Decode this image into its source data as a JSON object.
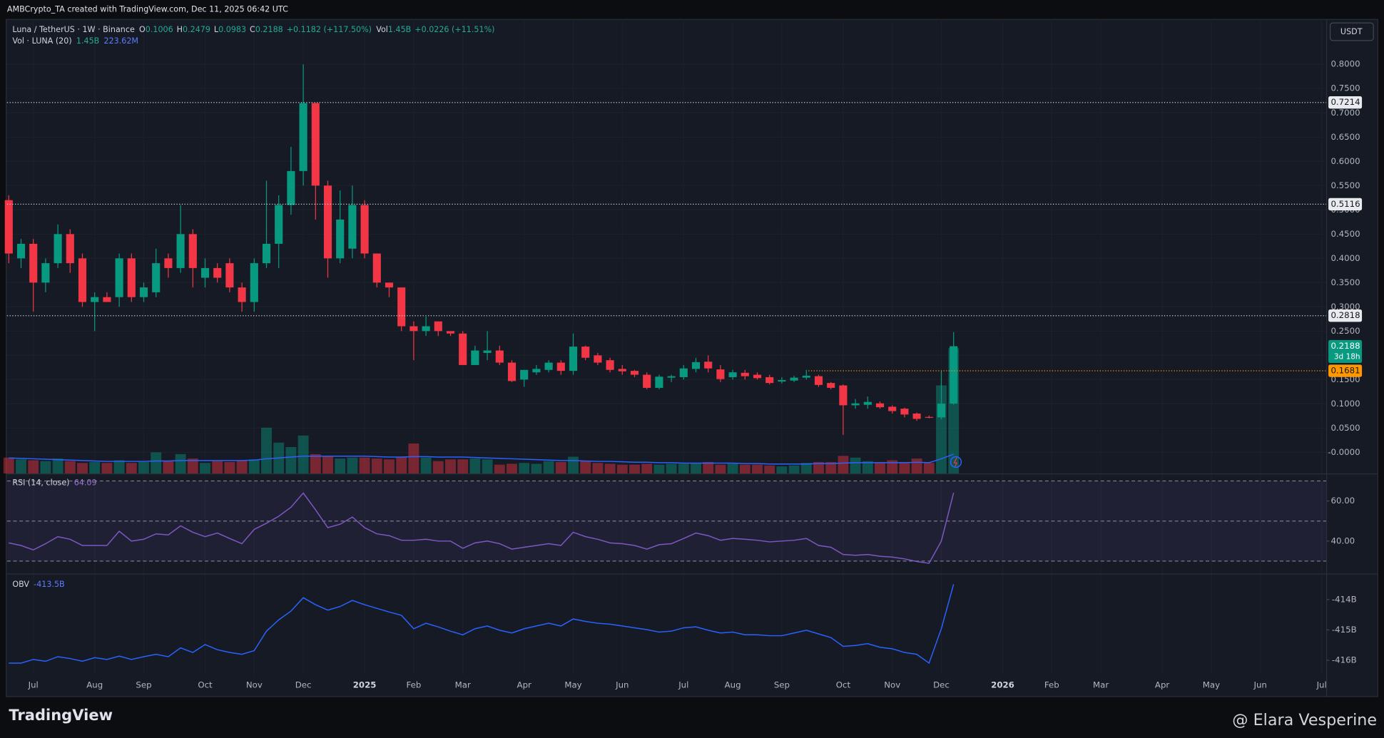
{
  "header": {
    "credit": "AMBCrypto_TA created with TradingView.com, Dec 11, 2025 06:42 UTC",
    "symbol": "Luna / TetherUS · 1W · Binance",
    "ohlc_labels": [
      "O",
      "H",
      "L",
      "C"
    ],
    "change": "+0.1182 (+117.50%)",
    "vol_label": "Vol",
    "vol_change": "+0.0226 (+11.51%)",
    "currency": "USDT"
  },
  "footer": {
    "brand": "TradingView",
    "watermark": "@ Elara Vesperine"
  },
  "chart_data": [
    {
      "type": "candlestick",
      "x": [
        0,
        1,
        2,
        3,
        4,
        5,
        6,
        7,
        8,
        9,
        10,
        11,
        12,
        13,
        14,
        15,
        16,
        17,
        18,
        19,
        20,
        21,
        22,
        23,
        24,
        25,
        26,
        27,
        28,
        29,
        30,
        31,
        32,
        33,
        34,
        35,
        36,
        37,
        38,
        39,
        40,
        41,
        42,
        43,
        44,
        45,
        46,
        47,
        48,
        49,
        50,
        51,
        52,
        53,
        54,
        55,
        56,
        57,
        58,
        59,
        60,
        61,
        62,
        63,
        64,
        65,
        66,
        67,
        68,
        69,
        70,
        71,
        72,
        73,
        74,
        75,
        76,
        77
      ],
      "open": [
        0.52,
        0.4,
        0.43,
        0.35,
        0.39,
        0.45,
        0.4,
        0.31,
        0.32,
        0.32,
        0.4,
        0.32,
        0.33,
        0.4,
        0.38,
        0.45,
        0.36,
        0.38,
        0.39,
        0.34,
        0.31,
        0.39,
        0.43,
        0.51,
        0.58,
        0.72,
        0.55,
        0.4,
        0.42,
        0.51,
        0.41,
        0.35,
        0.34,
        0.26,
        0.25,
        0.27,
        0.25,
        0.245,
        0.18,
        0.205,
        0.21,
        0.185,
        0.15,
        0.165,
        0.17,
        0.185,
        0.168,
        0.218,
        0.2,
        0.19,
        0.172,
        0.168,
        0.16,
        0.133,
        0.154,
        0.155,
        0.172,
        0.187,
        0.171,
        0.155,
        0.164,
        0.16,
        0.155,
        0.146,
        0.148,
        0.154,
        0.157,
        0.143,
        0.138,
        0.097,
        0.098,
        0.101,
        0.094,
        0.09,
        0.08,
        0.073,
        0.072,
        0.1006
      ],
      "high": [
        0.53,
        0.44,
        0.44,
        0.4,
        0.47,
        0.46,
        0.41,
        0.33,
        0.33,
        0.41,
        0.41,
        0.35,
        0.42,
        0.41,
        0.51,
        0.46,
        0.4,
        0.39,
        0.4,
        0.35,
        0.4,
        0.56,
        0.53,
        0.63,
        0.8,
        0.72,
        0.56,
        0.54,
        0.55,
        0.52,
        0.41,
        0.35,
        0.34,
        0.27,
        0.28,
        0.27,
        0.25,
        0.25,
        0.22,
        0.25,
        0.22,
        0.19,
        0.17,
        0.18,
        0.19,
        0.19,
        0.245,
        0.22,
        0.205,
        0.195,
        0.18,
        0.17,
        0.165,
        0.16,
        0.16,
        0.18,
        0.195,
        0.2,
        0.18,
        0.17,
        0.17,
        0.165,
        0.16,
        0.155,
        0.158,
        0.17,
        0.16,
        0.145,
        0.14,
        0.11,
        0.115,
        0.105,
        0.097,
        0.092,
        0.082,
        0.076,
        0.168,
        0.2479
      ],
      "low": [
        0.39,
        0.38,
        0.29,
        0.33,
        0.38,
        0.37,
        0.3,
        0.25,
        0.31,
        0.3,
        0.31,
        0.31,
        0.32,
        0.36,
        0.37,
        0.34,
        0.34,
        0.35,
        0.33,
        0.29,
        0.29,
        0.38,
        0.38,
        0.49,
        0.55,
        0.48,
        0.36,
        0.39,
        0.4,
        0.4,
        0.34,
        0.32,
        0.25,
        0.19,
        0.24,
        0.24,
        0.24,
        0.18,
        0.18,
        0.19,
        0.18,
        0.145,
        0.135,
        0.16,
        0.165,
        0.16,
        0.16,
        0.19,
        0.18,
        0.165,
        0.16,
        0.155,
        0.13,
        0.13,
        0.145,
        0.15,
        0.165,
        0.165,
        0.145,
        0.15,
        0.15,
        0.15,
        0.14,
        0.142,
        0.145,
        0.15,
        0.135,
        0.13,
        0.036,
        0.09,
        0.09,
        0.09,
        0.08,
        0.072,
        0.065,
        0.07,
        0.068,
        0.0983
      ],
      "close": [
        0.41,
        0.43,
        0.35,
        0.39,
        0.45,
        0.39,
        0.31,
        0.32,
        0.31,
        0.4,
        0.32,
        0.34,
        0.39,
        0.38,
        0.45,
        0.38,
        0.38,
        0.36,
        0.34,
        0.31,
        0.39,
        0.43,
        0.51,
        0.58,
        0.72,
        0.55,
        0.4,
        0.48,
        0.51,
        0.41,
        0.35,
        0.34,
        0.26,
        0.25,
        0.26,
        0.25,
        0.245,
        0.18,
        0.21,
        0.21,
        0.185,
        0.147,
        0.17,
        0.172,
        0.185,
        0.168,
        0.218,
        0.195,
        0.185,
        0.17,
        0.167,
        0.16,
        0.133,
        0.156,
        0.157,
        0.173,
        0.186,
        0.173,
        0.151,
        0.165,
        0.157,
        0.153,
        0.143,
        0.149,
        0.154,
        0.158,
        0.139,
        0.133,
        0.097,
        0.101,
        0.104,
        0.093,
        0.085,
        0.078,
        0.069,
        0.072,
        0.1006,
        0.2188
      ],
      "up_color": "#089981",
      "down_color": "#f23645",
      "xlim": [
        -0.14,
        107.4
      ],
      "xticks": [
        {
          "value": 2,
          "label": "Jul"
        },
        {
          "value": 7,
          "label": "Aug"
        },
        {
          "value": 11,
          "label": "Sep"
        },
        {
          "value": 16,
          "label": "Oct"
        },
        {
          "value": 20,
          "label": "Nov"
        },
        {
          "value": 24,
          "label": "Dec"
        },
        {
          "value": 29,
          "label": "2025"
        },
        {
          "value": 33,
          "label": "Feb"
        },
        {
          "value": 37,
          "label": "Mar"
        },
        {
          "value": 42,
          "label": "Apr"
        },
        {
          "value": 46,
          "label": "May"
        },
        {
          "value": 50,
          "label": "Jun"
        },
        {
          "value": 55,
          "label": "Jul"
        },
        {
          "value": 59,
          "label": "Aug"
        },
        {
          "value": 63,
          "label": "Sep"
        },
        {
          "value": 68,
          "label": "Oct"
        },
        {
          "value": 72,
          "label": "Nov"
        },
        {
          "value": 76,
          "label": "Dec"
        },
        {
          "value": 81,
          "label": "2026"
        },
        {
          "value": 85,
          "label": "Feb"
        },
        {
          "value": 89,
          "label": "Mar"
        },
        {
          "value": 94,
          "label": "Apr"
        },
        {
          "value": 98,
          "label": "May"
        },
        {
          "value": 102,
          "label": "Jun"
        },
        {
          "value": 107,
          "label": "Jul"
        }
      ],
      "ylim": [
        -0.0436,
        0.8927
      ],
      "yticks": [
        {
          "value": 0,
          "label": "-0.0000"
        },
        {
          "value": 0.05,
          "label": "0.0500"
        },
        {
          "value": 0.1,
          "label": "0.1000"
        },
        {
          "value": 0.15,
          "label": "0.1500"
        },
        {
          "value": 0.2,
          "label": "0.2000"
        },
        {
          "value": 0.25,
          "label": "0.2500"
        },
        {
          "value": 0.3,
          "label": "0.3000"
        },
        {
          "value": 0.35,
          "label": "0.3500"
        },
        {
          "value": 0.4,
          "label": "0.4000"
        },
        {
          "value": 0.45,
          "label": "0.4500"
        },
        {
          "value": 0.5,
          "label": "0.5000"
        },
        {
          "value": 0.55,
          "label": "0.5500"
        },
        {
          "value": 0.6,
          "label": "0.6000"
        },
        {
          "value": 0.65,
          "label": "0.6500"
        },
        {
          "value": 0.7,
          "label": "0.7000"
        },
        {
          "value": 0.75,
          "label": "0.7500"
        },
        {
          "value": 0.8,
          "label": "0.8000"
        }
      ],
      "levels": [
        0.7214,
        0.5116,
        0.2818
      ],
      "alert_level": 0.1681,
      "alert_color": "#ff9800",
      "countdown": "3d 18h",
      "volume": {
        "name": "Vol · LUNA (20)",
        "last_label": "1.45B",
        "values": [
          0.184,
          0.163,
          0.153,
          0.143,
          0.173,
          0.143,
          0.122,
          0.133,
          0.122,
          0.153,
          0.122,
          0.133,
          0.245,
          0.143,
          0.224,
          0.173,
          0.122,
          0.143,
          0.133,
          0.153,
          0.163,
          0.53,
          0.357,
          0.306,
          0.439,
          0.224,
          0.194,
          0.173,
          0.184,
          0.184,
          0.173,
          0.163,
          0.194,
          0.347,
          0.184,
          0.143,
          0.163,
          0.163,
          0.173,
          0.163,
          0.102,
          0.112,
          0.122,
          0.112,
          0.143,
          0.133,
          0.194,
          0.143,
          0.122,
          0.112,
          0.102,
          0.102,
          0.112,
          0.102,
          0.112,
          0.112,
          0.122,
          0.133,
          0.102,
          0.112,
          0.102,
          0.102,
          0.092,
          0.082,
          0.092,
          0.122,
          0.133,
          0.133,
          0.204,
          0.184,
          0.143,
          0.133,
          0.153,
          0.133,
          0.173,
          0.122,
          1.02,
          1.45
        ],
        "ma": {
          "color": "#2962ff",
          "last_label": "223.62M",
          "values": [
            0.18,
            0.175,
            0.17,
            0.165,
            0.16,
            0.155,
            0.15,
            0.145,
            0.14,
            0.14,
            0.14,
            0.14,
            0.145,
            0.145,
            0.15,
            0.15,
            0.15,
            0.15,
            0.15,
            0.15,
            0.155,
            0.17,
            0.18,
            0.19,
            0.2,
            0.2,
            0.2,
            0.2,
            0.2,
            0.2,
            0.195,
            0.19,
            0.19,
            0.195,
            0.195,
            0.19,
            0.19,
            0.19,
            0.185,
            0.18,
            0.175,
            0.17,
            0.165,
            0.16,
            0.155,
            0.15,
            0.15,
            0.145,
            0.14,
            0.14,
            0.135,
            0.13,
            0.13,
            0.125,
            0.125,
            0.12,
            0.12,
            0.12,
            0.12,
            0.12,
            0.115,
            0.115,
            0.11,
            0.11,
            0.11,
            0.11,
            0.115,
            0.115,
            0.12,
            0.125,
            0.125,
            0.125,
            0.125,
            0.125,
            0.13,
            0.125,
            0.17,
            0.22362
          ]
        }
      }
    },
    {
      "type": "line",
      "ylim": [
        24,
        73.3
      ],
      "yticks": [
        {
          "value": 40,
          "label": "40.00"
        },
        {
          "value": 60,
          "label": "60.00"
        }
      ],
      "bands": [
        70,
        50,
        30
      ],
      "series": [
        {
          "name": "RSI (14, close)",
          "color": "#7e57c2",
          "values": [
            39.1,
            37.8,
            35.6,
            38.7,
            42.2,
            40.9,
            37.8,
            37.8,
            37.8,
            44.9,
            40,
            40.9,
            43.6,
            43.1,
            47.6,
            44.4,
            42.2,
            44,
            41.3,
            38.7,
            45.8,
            48.9,
            52.4,
            56.9,
            64,
            55.6,
            46.7,
            48.4,
            52,
            46.7,
            43.6,
            42.7,
            40.4,
            40.4,
            40.9,
            40,
            40,
            36.4,
            39.1,
            40,
            38.7,
            36,
            36.9,
            37.8,
            38.7,
            37.8,
            44.4,
            42.2,
            40.9,
            39.1,
            38.7,
            37.8,
            36,
            38.2,
            38.7,
            41.3,
            44,
            42.7,
            40.4,
            41.3,
            40.9,
            40.4,
            39.6,
            40,
            40.4,
            41.3,
            37.8,
            36.9,
            33.3,
            32.9,
            33.3,
            32.4,
            32,
            31.1,
            29.8,
            28.9,
            40,
            64.09
          ]
        }
      ]
    },
    {
      "type": "line",
      "ylim": [
        -417.19,
        -413.19
      ],
      "yticks": [
        {
          "value": -414,
          "label": "-414B"
        },
        {
          "value": -415,
          "label": "-415B"
        },
        {
          "value": -416,
          "label": "-416B"
        }
      ],
      "series": [
        {
          "name": "OBV",
          "color": "#2962ff",
          "last_label": "-413.5B",
          "values": [
            -416.09,
            -416.09,
            -415.97,
            -416.03,
            -415.88,
            -415.94,
            -416.03,
            -415.91,
            -415.97,
            -415.86,
            -415.97,
            -415.88,
            -415.8,
            -415.88,
            -415.59,
            -415.74,
            -415.48,
            -415.65,
            -415.74,
            -415.8,
            -415.68,
            -415.04,
            -414.67,
            -414.38,
            -413.94,
            -414.17,
            -414.35,
            -414.23,
            -414.03,
            -414.17,
            -414.29,
            -414.41,
            -414.52,
            -414.96,
            -414.78,
            -414.9,
            -415.04,
            -415.16,
            -414.96,
            -414.87,
            -415.01,
            -415.1,
            -414.96,
            -414.87,
            -414.78,
            -414.87,
            -414.64,
            -414.72,
            -414.78,
            -414.81,
            -414.87,
            -414.93,
            -414.99,
            -415.07,
            -415.04,
            -414.93,
            -414.9,
            -415.01,
            -415.1,
            -415.07,
            -415.16,
            -415.16,
            -415.19,
            -415.19,
            -415.1,
            -415.01,
            -415.13,
            -415.25,
            -415.54,
            -415.51,
            -415.45,
            -415.57,
            -415.62,
            -415.74,
            -415.8,
            -416.09,
            -414.96,
            -413.5
          ]
        }
      ]
    }
  ]
}
